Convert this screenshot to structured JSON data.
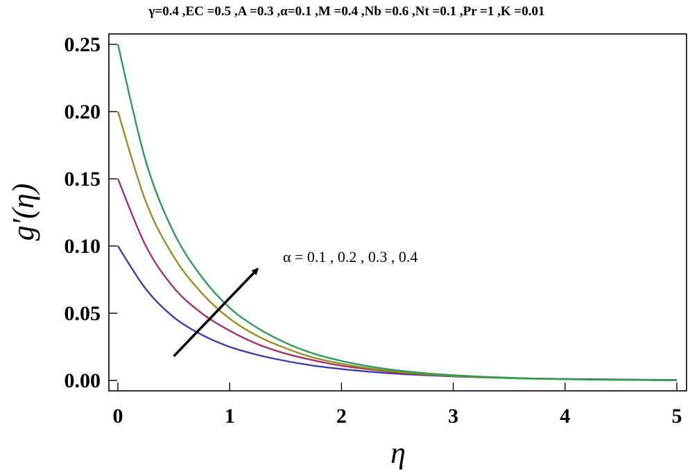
{
  "chart_data": {
    "type": "line",
    "title": "γ=0.4 ,EC =0.5 ,A =0.3 ,α=0.1 ,M =0.4 ,Nb =0.6 ,Nt =0.1 ,Pr =1 ,K =0.01",
    "xlabel": "η",
    "ylabel": "g′(η)",
    "xlim": [
      0,
      5
    ],
    "ylim": [
      0,
      0.25
    ],
    "x_ticks": [
      "0",
      "1",
      "2",
      "3",
      "4",
      "5"
    ],
    "y_ticks": [
      "0.00",
      "0.05",
      "0.10",
      "0.15",
      "0.20",
      "0.25"
    ],
    "grid": false,
    "annotation": "α = 0.1 , 0.2 , 0.3 , 0.4",
    "x": [
      0,
      0.25,
      0.5,
      0.75,
      1,
      1.25,
      1.5,
      1.75,
      2,
      2.25,
      2.5,
      2.75,
      3,
      3.25,
      3.5,
      3.75,
      4,
      4.25,
      4.5,
      4.75,
      5
    ],
    "series": [
      {
        "color": "#3b3fa0",
        "values": [
          0.1,
          0.068,
          0.047,
          0.034,
          0.025,
          0.019,
          0.0145,
          0.011,
          0.0085,
          0.0065,
          0.005,
          0.0039,
          0.003,
          0.0023,
          0.0018,
          0.0014,
          0.0011,
          0.0009,
          0.0007,
          0.0005,
          0.0004
        ]
      },
      {
        "color": "#a0336c",
        "values": [
          0.15,
          0.1,
          0.069,
          0.05,
          0.037,
          0.027,
          0.02,
          0.015,
          0.011,
          0.0082,
          0.006,
          0.0045,
          0.0033,
          0.0025,
          0.0018,
          0.0013,
          0.001,
          0.0007,
          0.0005,
          0.0004,
          0.0003
        ]
      },
      {
        "color": "#9b8a2a",
        "values": [
          0.2,
          0.133,
          0.092,
          0.065,
          0.046,
          0.033,
          0.024,
          0.017,
          0.0125,
          0.009,
          0.0065,
          0.0047,
          0.0034,
          0.0024,
          0.0017,
          0.0012,
          0.0009,
          0.0006,
          0.0005,
          0.0003,
          0.0002
        ]
      },
      {
        "color": "#2e9a55",
        "values": [
          0.25,
          0.163,
          0.11,
          0.077,
          0.054,
          0.039,
          0.028,
          0.02,
          0.0145,
          0.0105,
          0.0075,
          0.0054,
          0.0039,
          0.0028,
          0.002,
          0.0014,
          0.001,
          0.0007,
          0.0005,
          0.0003,
          0.0002
        ]
      }
    ],
    "arrow": {
      "from": [
        0.5,
        0.018
      ],
      "to": [
        1.25,
        0.083
      ]
    }
  }
}
